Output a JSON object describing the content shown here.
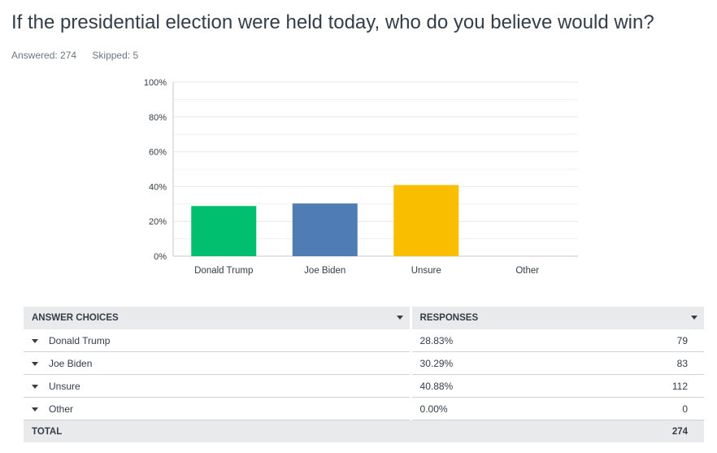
{
  "question": "If the presidential election were held today, who do you believe would win?",
  "stats": {
    "answered": "Answered: 274",
    "skipped": "Skipped: 5"
  },
  "chart_data": {
    "type": "bar",
    "categories": [
      "Donald Trump",
      "Joe Biden",
      "Unsure",
      "Other"
    ],
    "values": [
      28.83,
      30.29,
      40.88,
      0.0
    ],
    "colors": [
      "#00bf6f",
      "#507cb6",
      "#f9be00",
      "#6bc8cd"
    ],
    "yticks": [
      "0%",
      "20%",
      "40%",
      "60%",
      "80%",
      "100%"
    ],
    "ylim": [
      0,
      100
    ],
    "grid": true
  },
  "table": {
    "headers": {
      "choices": "ANSWER CHOICES",
      "responses": "RESPONSES"
    },
    "rows": [
      {
        "choice": "Donald Trump",
        "percent": "28.83%",
        "count": "79"
      },
      {
        "choice": "Joe Biden",
        "percent": "30.29%",
        "count": "83"
      },
      {
        "choice": "Unsure",
        "percent": "40.88%",
        "count": "112"
      },
      {
        "choice": "Other",
        "percent": "0.00%",
        "count": "0"
      }
    ],
    "total": {
      "label": "TOTAL",
      "count": "274"
    }
  }
}
